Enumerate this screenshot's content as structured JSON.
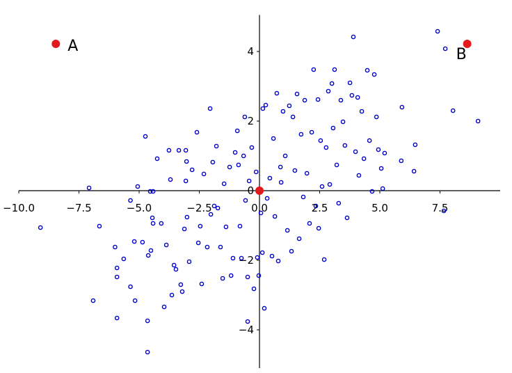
{
  "chart_data": {
    "type": "scatter",
    "xlim": [
      -10,
      10
    ],
    "ylim": [
      -5.1,
      5.05
    ],
    "xticks": [
      {
        "value": -10,
        "label": "−10.0"
      },
      {
        "value": -7.5,
        "label": "−7.5"
      },
      {
        "value": -5,
        "label": "−5.0"
      },
      {
        "value": -2.5,
        "label": "−2.5"
      },
      {
        "value": 0,
        "label": "0.0"
      },
      {
        "value": 2.5,
        "label": "2.5"
      },
      {
        "value": 5,
        "label": "5.0"
      },
      {
        "value": 7.5,
        "label": "7.5"
      }
    ],
    "yticks": [
      {
        "value": -4,
        "label": "−4"
      },
      {
        "value": -2,
        "label": "−2"
      },
      0,
      2,
      4
    ],
    "color": "#0000cc",
    "x": [
      -9.1,
      -7.08,
      -6.65,
      -6.91,
      -5.92,
      -6.0,
      -5.92,
      -5.92,
      -5.64,
      -5.36,
      -5.17,
      -5.2,
      -5.36,
      -5.06,
      -4.74,
      -4.86,
      -4.62,
      -4.65,
      -4.65,
      -4.51,
      -4.45,
      -4.42,
      -4.54,
      -4.42,
      -4.25,
      -4.08,
      -3.96,
      -3.87,
      -3.76,
      -3.7,
      -3.64,
      -3.55,
      -3.47,
      -3.35,
      -3.27,
      -3.21,
      -3.12,
      -3.06,
      -3.03,
      -3.06,
      -3.01,
      -2.92,
      -2.8,
      -2.6,
      -2.54,
      -2.46,
      -2.4,
      -2.31,
      -2.17,
      -2.05,
      -2.02,
      -1.94,
      -1.88,
      -1.79,
      -1.73,
      -1.62,
      -1.53,
      -1.47,
      -1.39,
      -1.24,
      -1.18,
      -1.1,
      -1.01,
      -0.92,
      -0.87,
      -0.81,
      -0.75,
      -0.66,
      -0.61,
      -0.58,
      -0.49,
      -0.49,
      -0.43,
      -0.32,
      -0.23,
      -0.14,
      -0.09,
      -0.03,
      0.06,
      0.12,
      0.14,
      0.2,
      0.26,
      0.32,
      0.43,
      0.52,
      0.58,
      0.64,
      0.72,
      0.78,
      0.87,
      0.9,
      0.98,
      1.07,
      1.16,
      1.24,
      1.33,
      1.39,
      1.47,
      1.56,
      1.65,
      1.73,
      1.82,
      1.88,
      1.97,
      2.08,
      2.17,
      2.25,
      2.34,
      2.43,
      2.46,
      2.54,
      2.6,
      2.69,
      2.77,
      2.86,
      2.92,
      3.01,
      3.06,
      3.12,
      3.21,
      3.29,
      3.38,
      3.47,
      3.55,
      3.64,
      3.76,
      3.84,
      3.9,
      3.99,
      4.08,
      4.13,
      4.25,
      4.34,
      4.48,
      4.57,
      4.68,
      4.77,
      4.86,
      4.94,
      5.06,
      5.12,
      5.2,
      5.92,
      5.89,
      6.42,
      6.47,
      7.4,
      7.72,
      7.66,
      8.04,
      9.08
    ],
    "y": [
      -1.06,
      0.08,
      -1.02,
      -3.16,
      -3.66,
      -1.62,
      -2.22,
      -2.48,
      -1.96,
      -2.76,
      -3.16,
      -1.46,
      -0.28,
      0.12,
      1.56,
      -1.48,
      -1.86,
      -3.74,
      -4.64,
      -1.72,
      -0.78,
      -0.94,
      -0.02,
      -0.02,
      0.92,
      -0.94,
      -3.34,
      -1.56,
      1.16,
      0.32,
      -3.0,
      -2.14,
      -2.26,
      1.16,
      -2.7,
      -2.9,
      -1.1,
      1.16,
      0.84,
      0.28,
      -0.76,
      -2.04,
      0.6,
      1.68,
      -1.5,
      -1.02,
      -2.68,
      0.48,
      -1.62,
      2.36,
      -0.68,
      0.82,
      -0.44,
      1.28,
      -0.5,
      -1.62,
      -2.52,
      0.2,
      -1.04,
      0.68,
      -2.44,
      -1.94,
      1.1,
      1.72,
      0.74,
      -1.02,
      -1.94,
      1.0,
      2.12,
      -0.28,
      -2.48,
      -3.76,
      0.28,
      1.24,
      -2.82,
      0.54,
      -1.92,
      -2.44,
      -0.64,
      -1.78,
      2.36,
      -3.38,
      2.46,
      -0.22,
      0.36,
      -1.88,
      1.5,
      -0.74,
      2.8,
      -2.02,
      0.68,
      0.24,
      2.28,
      1.0,
      -1.14,
      2.44,
      -1.74,
      2.12,
      0.58,
      2.78,
      -1.38,
      1.62,
      -0.18,
      2.6,
      0.5,
      -0.94,
      1.68,
      3.48,
      -0.44,
      2.62,
      -1.08,
      1.44,
      0.12,
      -1.98,
      1.24,
      2.86,
      0.18,
      3.08,
      1.8,
      3.48,
      0.74,
      -0.36,
      2.6,
      1.98,
      1.3,
      -0.78,
      3.1,
      2.74,
      4.42,
      1.12,
      2.68,
      0.44,
      2.28,
      0.92,
      3.46,
      1.44,
      -0.02,
      3.34,
      2.12,
      1.18,
      0.64,
      0.06,
      1.08,
      2.4,
      0.86,
      0.56,
      1.32,
      4.58,
      4.08,
      -0.58,
      2.3,
      2.0
    ],
    "points": {
      "x": [
        -8.46,
        0,
        8.63
      ],
      "y": [
        4.22,
        0,
        4.22
      ],
      "labels": [
        "A",
        null,
        "B"
      ],
      "color": "#e31a1c"
    }
  }
}
